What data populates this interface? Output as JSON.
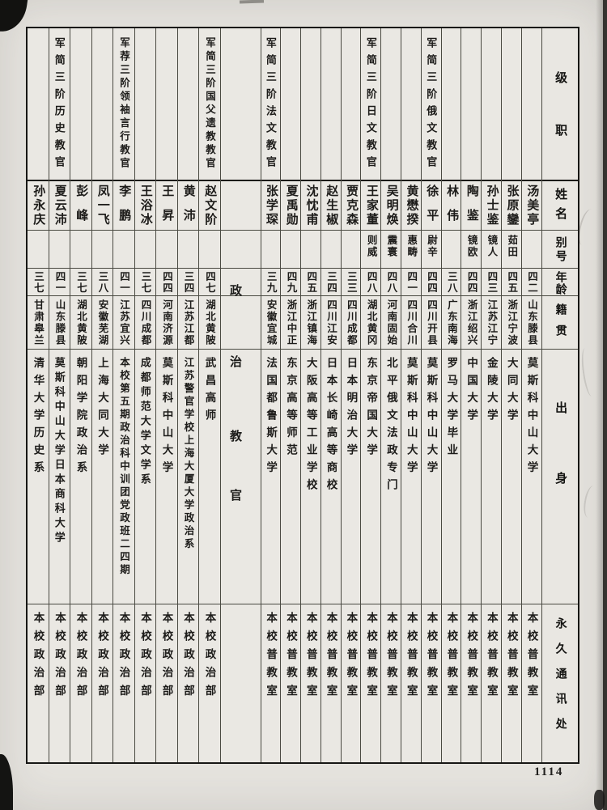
{
  "document": {
    "page_number": "1114",
    "section_label": "政治教官",
    "section_label_chars": [
      "政",
      "治",
      "教",
      "官"
    ],
    "field_labels": {
      "rank": "级职",
      "name": "姓名",
      "courtesy_name": "别号",
      "age": "年龄",
      "native_place": "籍贯",
      "background": "出身",
      "permanent_address": "永久通讯处"
    },
    "columns_right_to_left": [
      {
        "rank": "",
        "name": "汤美亭",
        "courtesy_name": "",
        "age": "四二",
        "native_place": "山东滕县",
        "background": "莫斯科中山大学",
        "permanent_address": "本校普教室"
      },
      {
        "rank": "",
        "name": "张原鑾",
        "courtesy_name": "茹田",
        "age": "四五",
        "native_place": "浙江宁波",
        "background": "大同大学",
        "permanent_address": "本校普教室"
      },
      {
        "rank": "",
        "name": "孙士鉴",
        "courtesy_name": "镜人",
        "age": "四三",
        "native_place": "江苏江宁",
        "background": "金陵大学",
        "permanent_address": "本校普教室"
      },
      {
        "rank": "",
        "name": "陶鉴",
        "courtesy_name": "镜欧",
        "age": "四四",
        "native_place": "浙江绍兴",
        "background": "中国大学",
        "permanent_address": "本校普教室"
      },
      {
        "rank": "",
        "name": "林伟",
        "courtesy_name": "",
        "age": "三八",
        "native_place": "广东南海",
        "background": "罗马大学毕业",
        "permanent_address": "本校普教室"
      },
      {
        "rank": "军简三阶俄文教官",
        "name": "徐平",
        "courtesy_name": "尉辛",
        "age": "四四",
        "native_place": "四川开县",
        "background": "莫斯科中山大学",
        "permanent_address": "本校普教室"
      },
      {
        "rank": "",
        "name": "黄懋揆",
        "courtesy_name": "惠畴",
        "age": "四一",
        "native_place": "四川合川",
        "background": "莫斯科中山大学",
        "permanent_address": "本校普教室"
      },
      {
        "rank": "",
        "name": "吴明焕",
        "courtesy_name": "震寰",
        "age": "四八",
        "native_place": "河南固始",
        "background": "北平俄文法政专门",
        "permanent_address": "本校普教室"
      },
      {
        "rank": "军简三阶日文教官",
        "name": "王家董",
        "courtesy_name": "则威",
        "age": "四八",
        "native_place": "湖北黄冈",
        "background": "东京帝国大学",
        "permanent_address": "本校普教室"
      },
      {
        "rank": "",
        "name": "贾克森",
        "courtesy_name": "",
        "age": "三三",
        "native_place": "四川成都",
        "background": "日本明治大学",
        "permanent_address": "本校普教室"
      },
      {
        "rank": "",
        "name": "赵生椒",
        "courtesy_name": "",
        "age": "三四",
        "native_place": "四川江安",
        "background": "日本长崎高等商校",
        "permanent_address": "本校普教室"
      },
      {
        "rank": "",
        "name": "沈忱甫",
        "courtesy_name": "",
        "age": "四五",
        "native_place": "浙江镇海",
        "background": "大阪高等工业学校",
        "permanent_address": "本校普教室"
      },
      {
        "rank": "",
        "name": "夏禹勋",
        "courtesy_name": "",
        "age": "四九",
        "native_place": "浙江中正",
        "background": "东京高等师范",
        "permanent_address": "本校普教室"
      },
      {
        "rank": "军简三阶法文教官",
        "name": "张学琛",
        "courtesy_name": "",
        "age": "三九",
        "native_place": "安徽宜城",
        "background": "法国都鲁斯大学",
        "permanent_address": "本校普教室"
      },
      {
        "divider": true,
        "label": "政治教官"
      },
      {
        "rank": "军简三阶国父遗教教官",
        "name": "赵文阶",
        "courtesy_name": "",
        "age": "四七",
        "native_place": "湖北黄陂",
        "background": "武昌高师",
        "permanent_address": "本校政治部"
      },
      {
        "rank": "",
        "name": "黄沛",
        "courtesy_name": "",
        "age": "三四",
        "native_place": "江苏江都",
        "background": "江苏警官学校上海大厦大学政治系",
        "permanent_address": "本校政治部"
      },
      {
        "rank": "",
        "name": "王昇",
        "courtesy_name": "",
        "age": "四四",
        "native_place": "河南济源",
        "background": "莫斯科中山大学",
        "permanent_address": "本校政治部"
      },
      {
        "rank": "",
        "name": "王浴冰",
        "courtesy_name": "",
        "age": "三七",
        "native_place": "四川成都",
        "background": "成都师范大学文学系",
        "permanent_address": "本校政治部"
      },
      {
        "rank": "军荐三阶领袖言行教官",
        "name": "李鹏",
        "courtesy_name": "",
        "age": "四一",
        "native_place": "江苏宜兴",
        "background": "本校第五期政治科中训团党政班二四期",
        "permanent_address": "本校政治部"
      },
      {
        "rank": "",
        "name": "凤一飞",
        "courtesy_name": "",
        "age": "三八",
        "native_place": "安徽芜湖",
        "background": "上海大同大学",
        "permanent_address": "本校政治部"
      },
      {
        "rank": "",
        "name": "彭峰",
        "courtesy_name": "",
        "age": "三七",
        "native_place": "湖北黄陂",
        "background": "朝阳学院政治系",
        "permanent_address": "本校政治部"
      },
      {
        "rank": "军简三阶历史教官",
        "name": "夏云沛",
        "courtesy_name": "",
        "age": "四一",
        "native_place": "山东滕县",
        "background": "莫斯科中山大学日本商科大学",
        "permanent_address": "本校政治部"
      },
      {
        "rank": "",
        "name": "孙永庆",
        "courtesy_name": "",
        "age": "三七",
        "native_place": "甘肃皋兰",
        "background": "清华大学历史系",
        "permanent_address": "本校政治部"
      }
    ]
  }
}
